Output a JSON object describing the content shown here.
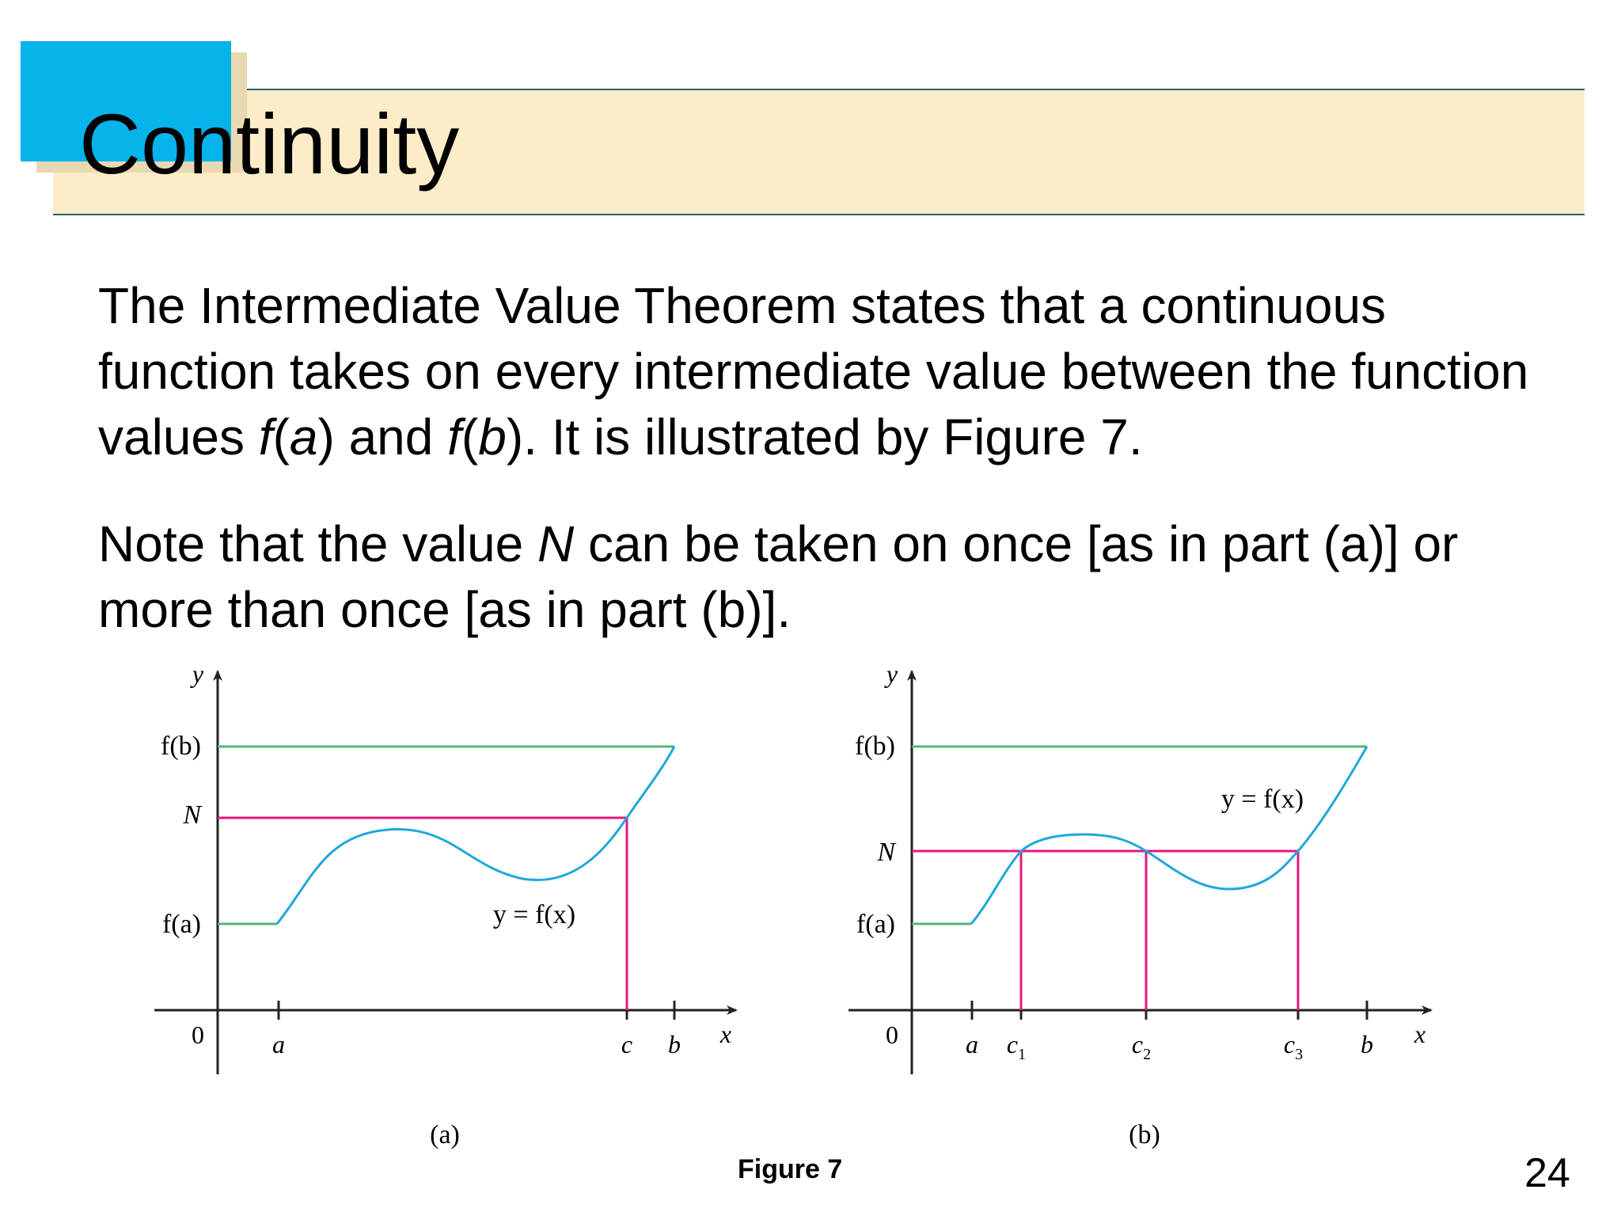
{
  "title": "Continuity",
  "paragraph1": {
    "part1": "The Intermediate Value Theorem states that a continuous function takes on every intermediate value between the function values ",
    "fa_f": "f",
    "fa_open": "(",
    "fa_a": "a",
    "fa_close": ") and ",
    "fb_f": "f",
    "fb_open": "(",
    "fb_b": "b",
    "part2": "). It is illustrated by Figure 7."
  },
  "paragraph2": {
    "part1": "Note that the value ",
    "N": "N",
    "part2": " can be taken on once [as in part (a)] or more than once [as in part (b)]."
  },
  "figure": {
    "caption": "Figure 7",
    "panel_a": {
      "label": "(a)",
      "y_axis": "y",
      "x_axis": "x",
      "origin": "0",
      "fb_label": "f(b)",
      "N_label": "N",
      "fa_label": "f(a)",
      "curve_label": "y = f(x)",
      "x_a": "a",
      "x_c": "c",
      "x_b": "b"
    },
    "panel_b": {
      "label": "(b)",
      "y_axis": "y",
      "x_axis": "x",
      "origin": "0",
      "fb_label": "f(b)",
      "N_label": "N",
      "fa_label": "f(a)",
      "curve_label": "y = f(x)",
      "x_a": "a",
      "x_c1": "c",
      "x_c1_sub": "1",
      "x_c2": "c",
      "x_c2_sub": "2",
      "x_c3": "c",
      "x_c3_sub": "3",
      "x_b": "b"
    },
    "colors": {
      "curve": "#20a7dc",
      "level": "#56b47a",
      "N_line": "#e4197f",
      "axis": "#222222"
    }
  },
  "page_number": "24"
}
